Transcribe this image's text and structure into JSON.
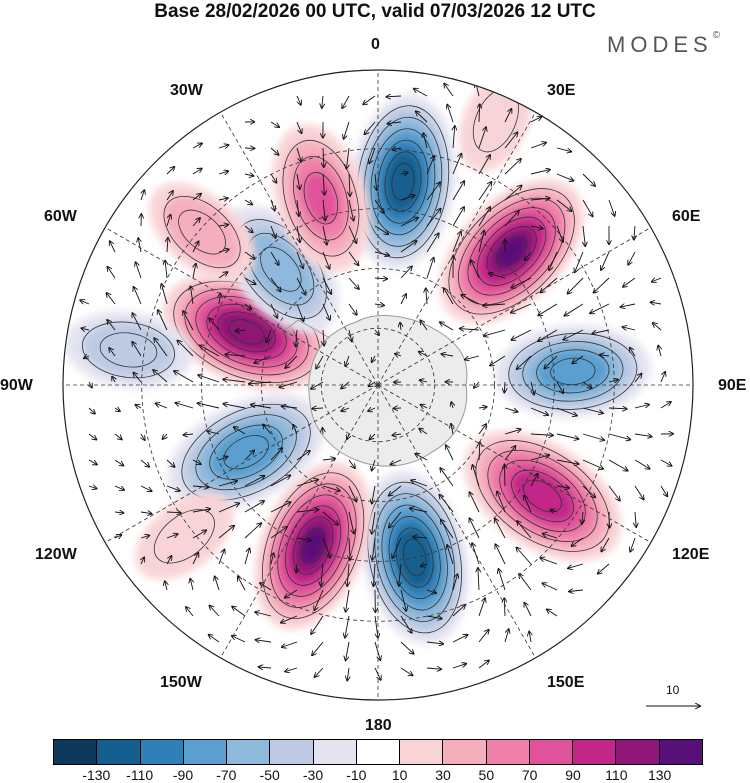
{
  "title": "Base 28/02/2026 00 UTC, valid 07/03/2026 12 UTC",
  "brand": {
    "name": "MODES",
    "mark": "©"
  },
  "longitude_labels": {
    "lon_0": "0",
    "lon_30e": "30E",
    "lon_60e": "60E",
    "lon_90e": "90E",
    "lon_120e": "120E",
    "lon_150e": "150E",
    "lon_180": "180",
    "lon_150w": "150W",
    "lon_120w": "120W",
    "lon_90w": "90W",
    "lon_60w": "60W",
    "lon_30w": "30W"
  },
  "reference_vector": {
    "label": "10"
  },
  "colorbar": {
    "colors": [
      "#0d3a5c",
      "#135f8f",
      "#2e80b8",
      "#5a9fcf",
      "#8fb9dc",
      "#bccbe3",
      "#e4e4f1",
      "#ffffff",
      "#f9d4d6",
      "#f5aebd",
      "#ee7fa8",
      "#e0529a",
      "#c22688",
      "#8d1677",
      "#57107a"
    ],
    "ticks": [
      "-130",
      "-110",
      "-90",
      "-70",
      "-50",
      "-30",
      "-10",
      "10",
      "30",
      "50",
      "70",
      "90",
      "110",
      "130"
    ]
  },
  "anomaly_centers": [
    {
      "lon_deg": 7,
      "radius_frac": 0.65,
      "value": -120
    },
    {
      "lon_deg": 45,
      "radius_frac": 0.6,
      "value": 130
    },
    {
      "lon_deg": 86,
      "radius_frac": 0.62,
      "value": -75
    },
    {
      "lon_deg": 124,
      "radius_frac": 0.63,
      "value": 100
    },
    {
      "lon_deg": 168,
      "radius_frac": 0.56,
      "value": -130
    },
    {
      "lon_deg": 202,
      "radius_frac": 0.55,
      "value": 130
    },
    {
      "lon_deg": 243,
      "radius_frac": 0.47,
      "value": -90
    },
    {
      "lon_deg": 292,
      "radius_frac": 0.45,
      "value": 125
    },
    {
      "lon_deg": 320,
      "radius_frac": 0.48,
      "value": -65
    },
    {
      "lon_deg": 343,
      "radius_frac": 0.62,
      "value": 70
    },
    {
      "lon_deg": 311,
      "radius_frac": 0.74,
      "value": 35
    },
    {
      "lon_deg": 278,
      "radius_frac": 0.8,
      "value": -40
    },
    {
      "lon_deg": 24,
      "radius_frac": 0.92,
      "value": 15
    },
    {
      "lon_deg": 232,
      "radius_frac": 0.78,
      "value": 20
    }
  ]
}
